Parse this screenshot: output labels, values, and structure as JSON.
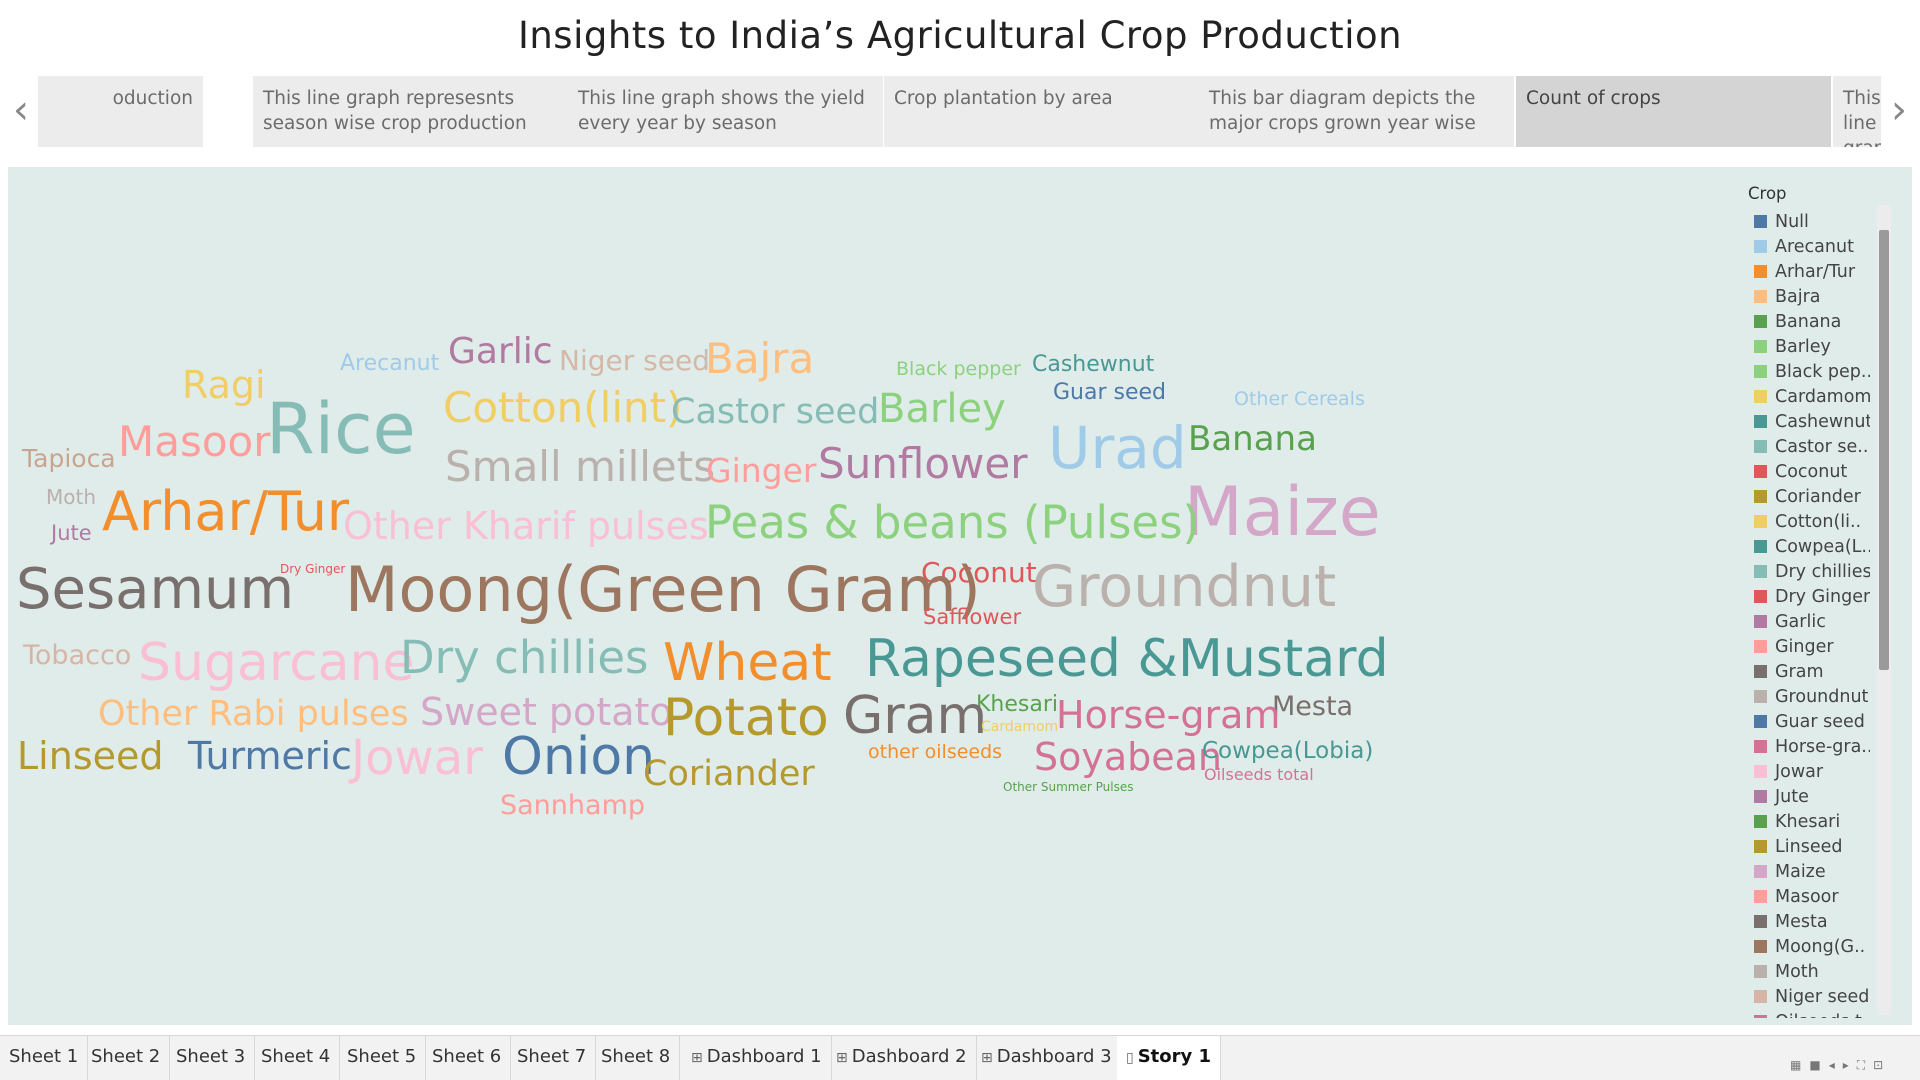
{
  "title": "Insights to India’s Agricultural Crop Production",
  "nav": {
    "prev_icon": "‹",
    "next_icon": "›"
  },
  "story_points": [
    "oduction",
    "This line graph represesnts season wise crop production",
    "This line graph shows the yield every year by season",
    "Crop plantation by area",
    "This bar diagram depicts the major crops grown year wise",
    "Count of crops",
    "This line graph shows seas"
  ],
  "active_story_point": "Count of crops",
  "word_cloud": [
    {
      "text": "Arecanut",
      "color": "#a0cbe8"
    },
    {
      "text": "Garlic",
      "color": "#b07aa1"
    },
    {
      "text": "Niger seed",
      "color": "#d4b8a8"
    },
    {
      "text": "Bajra",
      "color": "#ffbe7d"
    },
    {
      "text": "Black pepper",
      "color": "#8cd17d"
    },
    {
      "text": "Cashewnut",
      "color": "#499894"
    },
    {
      "text": "Ragi",
      "color": "#f1ce63"
    },
    {
      "text": "Guar seed",
      "color": "#4e79a7"
    },
    {
      "text": "Other Cereals",
      "color": "#a0cbe8"
    },
    {
      "text": "Rice",
      "color": "#86bcb6"
    },
    {
      "text": "Cotton(lint)",
      "color": "#f1ce63"
    },
    {
      "text": "Castor seed",
      "color": "#86bcb6"
    },
    {
      "text": "Barley",
      "color": "#8cd17d"
    },
    {
      "text": "Masoor",
      "color": "#ff9d9a"
    },
    {
      "text": "Tapioca",
      "color": "#c9a58f"
    },
    {
      "text": "Urad",
      "color": "#a0cbe8"
    },
    {
      "text": "Banana",
      "color": "#59a14f"
    },
    {
      "text": "Small millets",
      "color": "#bab0ac"
    },
    {
      "text": "Ginger",
      "color": "#ff9d9a"
    },
    {
      "text": "Sunflower",
      "color": "#b07aa1"
    },
    {
      "text": "Moth",
      "color": "#bab0ac"
    },
    {
      "text": "Maize",
      "color": "#d4a6c8"
    },
    {
      "text": "Arhar/Tur",
      "color": "#f28e2b"
    },
    {
      "text": "Jute",
      "color": "#b07aa1"
    },
    {
      "text": "Other Kharif pulses",
      "color": "#fabfd2"
    },
    {
      "text": "Peas & beans (Pulses)",
      "color": "#8cd17d"
    },
    {
      "text": "Dry Ginger",
      "color": "#e15759"
    },
    {
      "text": "Coconut",
      "color": "#e15759"
    },
    {
      "text": "Sesamum",
      "color": "#79706e"
    },
    {
      "text": "Moong(Green Gram)",
      "color": "#9d7660"
    },
    {
      "text": "Safflower",
      "color": "#e15759"
    },
    {
      "text": "Groundnut",
      "color": "#bab0ac"
    },
    {
      "text": "Tobacco",
      "color": "#d7b5a6"
    },
    {
      "text": "Sugarcane",
      "color": "#fabfd2"
    },
    {
      "text": "Dry chillies",
      "color": "#86bcb6"
    },
    {
      "text": "Wheat",
      "color": "#f28e2b"
    },
    {
      "text": "Rapeseed &Mustard",
      "color": "#499894"
    },
    {
      "text": "Other Rabi pulses",
      "color": "#ffbe7d"
    },
    {
      "text": "Sweet potato",
      "color": "#d4a6c8"
    },
    {
      "text": "Khesari",
      "color": "#59a14f"
    },
    {
      "text": "Mesta",
      "color": "#79706e"
    },
    {
      "text": "Potato",
      "color": "#b6992d"
    },
    {
      "text": "Gram",
      "color": "#79706e"
    },
    {
      "text": "Cardamom",
      "color": "#f1ce63"
    },
    {
      "text": "Horse-gram",
      "color": "#d37295"
    },
    {
      "text": "Linseed",
      "color": "#b6992d"
    },
    {
      "text": "Turmeric",
      "color": "#4e79a7"
    },
    {
      "text": "Jowar",
      "color": "#fabfd2"
    },
    {
      "text": "Onion",
      "color": "#4e79a7"
    },
    {
      "text": "other oilseeds",
      "color": "#f28e2b"
    },
    {
      "text": "Soyabean",
      "color": "#d37295"
    },
    {
      "text": "Cowpea(Lobia)",
      "color": "#499894"
    },
    {
      "text": "Coriander",
      "color": "#b6992d"
    },
    {
      "text": "Oilseeds total",
      "color": "#d37295"
    },
    {
      "text": "Other Summer Pulses",
      "color": "#59a14f"
    },
    {
      "text": "Sannhamp",
      "color": "#ff9d9a"
    }
  ],
  "legend": {
    "title": "Crop",
    "items": [
      {
        "label": "Null",
        "color": "#4e79a7"
      },
      {
        "label": "Arecanut",
        "color": "#a0cbe8"
      },
      {
        "label": "Arhar/Tur",
        "color": "#f28e2b"
      },
      {
        "label": "Bajra",
        "color": "#ffbe7d"
      },
      {
        "label": "Banana",
        "color": "#59a14f"
      },
      {
        "label": "Barley",
        "color": "#8cd17d"
      },
      {
        "label": "Black pep..",
        "color": "#8cd17d"
      },
      {
        "label": "Cardamom",
        "color": "#f1ce63"
      },
      {
        "label": "Cashewnut",
        "color": "#499894"
      },
      {
        "label": "Castor se..",
        "color": "#86bcb6"
      },
      {
        "label": "Coconut",
        "color": "#e15759"
      },
      {
        "label": "Coriander",
        "color": "#b6992d"
      },
      {
        "label": "Cotton(li..",
        "color": "#f1ce63"
      },
      {
        "label": "Cowpea(L..",
        "color": "#499894"
      },
      {
        "label": "Dry chillies",
        "color": "#86bcb6"
      },
      {
        "label": "Dry Ginger",
        "color": "#e15759"
      },
      {
        "label": "Garlic",
        "color": "#b07aa1"
      },
      {
        "label": "Ginger",
        "color": "#ff9d9a"
      },
      {
        "label": "Gram",
        "color": "#79706e"
      },
      {
        "label": "Groundnut",
        "color": "#bab0ac"
      },
      {
        "label": "Guar seed",
        "color": "#4e79a7"
      },
      {
        "label": "Horse-gra..",
        "color": "#d37295"
      },
      {
        "label": "Jowar",
        "color": "#fabfd2"
      },
      {
        "label": "Jute",
        "color": "#b07aa1"
      },
      {
        "label": "Khesari",
        "color": "#59a14f"
      },
      {
        "label": "Linseed",
        "color": "#b6992d"
      },
      {
        "label": "Maize",
        "color": "#d4a6c8"
      },
      {
        "label": "Masoor",
        "color": "#ff9d9a"
      },
      {
        "label": "Mesta",
        "color": "#79706e"
      },
      {
        "label": "Moong(G..",
        "color": "#9d7660"
      },
      {
        "label": "Moth",
        "color": "#bab0ac"
      },
      {
        "label": "Niger seed",
        "color": "#d7b5a6"
      },
      {
        "label": "Oilseeds t..",
        "color": "#d37295"
      }
    ]
  },
  "tabs": [
    {
      "label": "Sheet 1",
      "icon": ""
    },
    {
      "label": "Sheet 2",
      "icon": ""
    },
    {
      "label": "Sheet 3",
      "icon": ""
    },
    {
      "label": "Sheet 4",
      "icon": ""
    },
    {
      "label": "Sheet 5",
      "icon": ""
    },
    {
      "label": "Sheet 6",
      "icon": ""
    },
    {
      "label": "Sheet 7",
      "icon": ""
    },
    {
      "label": "Sheet 8",
      "icon": ""
    },
    {
      "label": "Dashboard 1",
      "icon": "⊞"
    },
    {
      "label": "Dashboard 2",
      "icon": "⊞"
    },
    {
      "label": "Dashboard 3",
      "icon": "⊞"
    },
    {
      "label": "Story 1",
      "icon": "▯"
    }
  ],
  "active_tab": "Story 1",
  "status_controls": [
    "▦",
    "■",
    "◂",
    "▸",
    "⛶",
    "⊡"
  ]
}
